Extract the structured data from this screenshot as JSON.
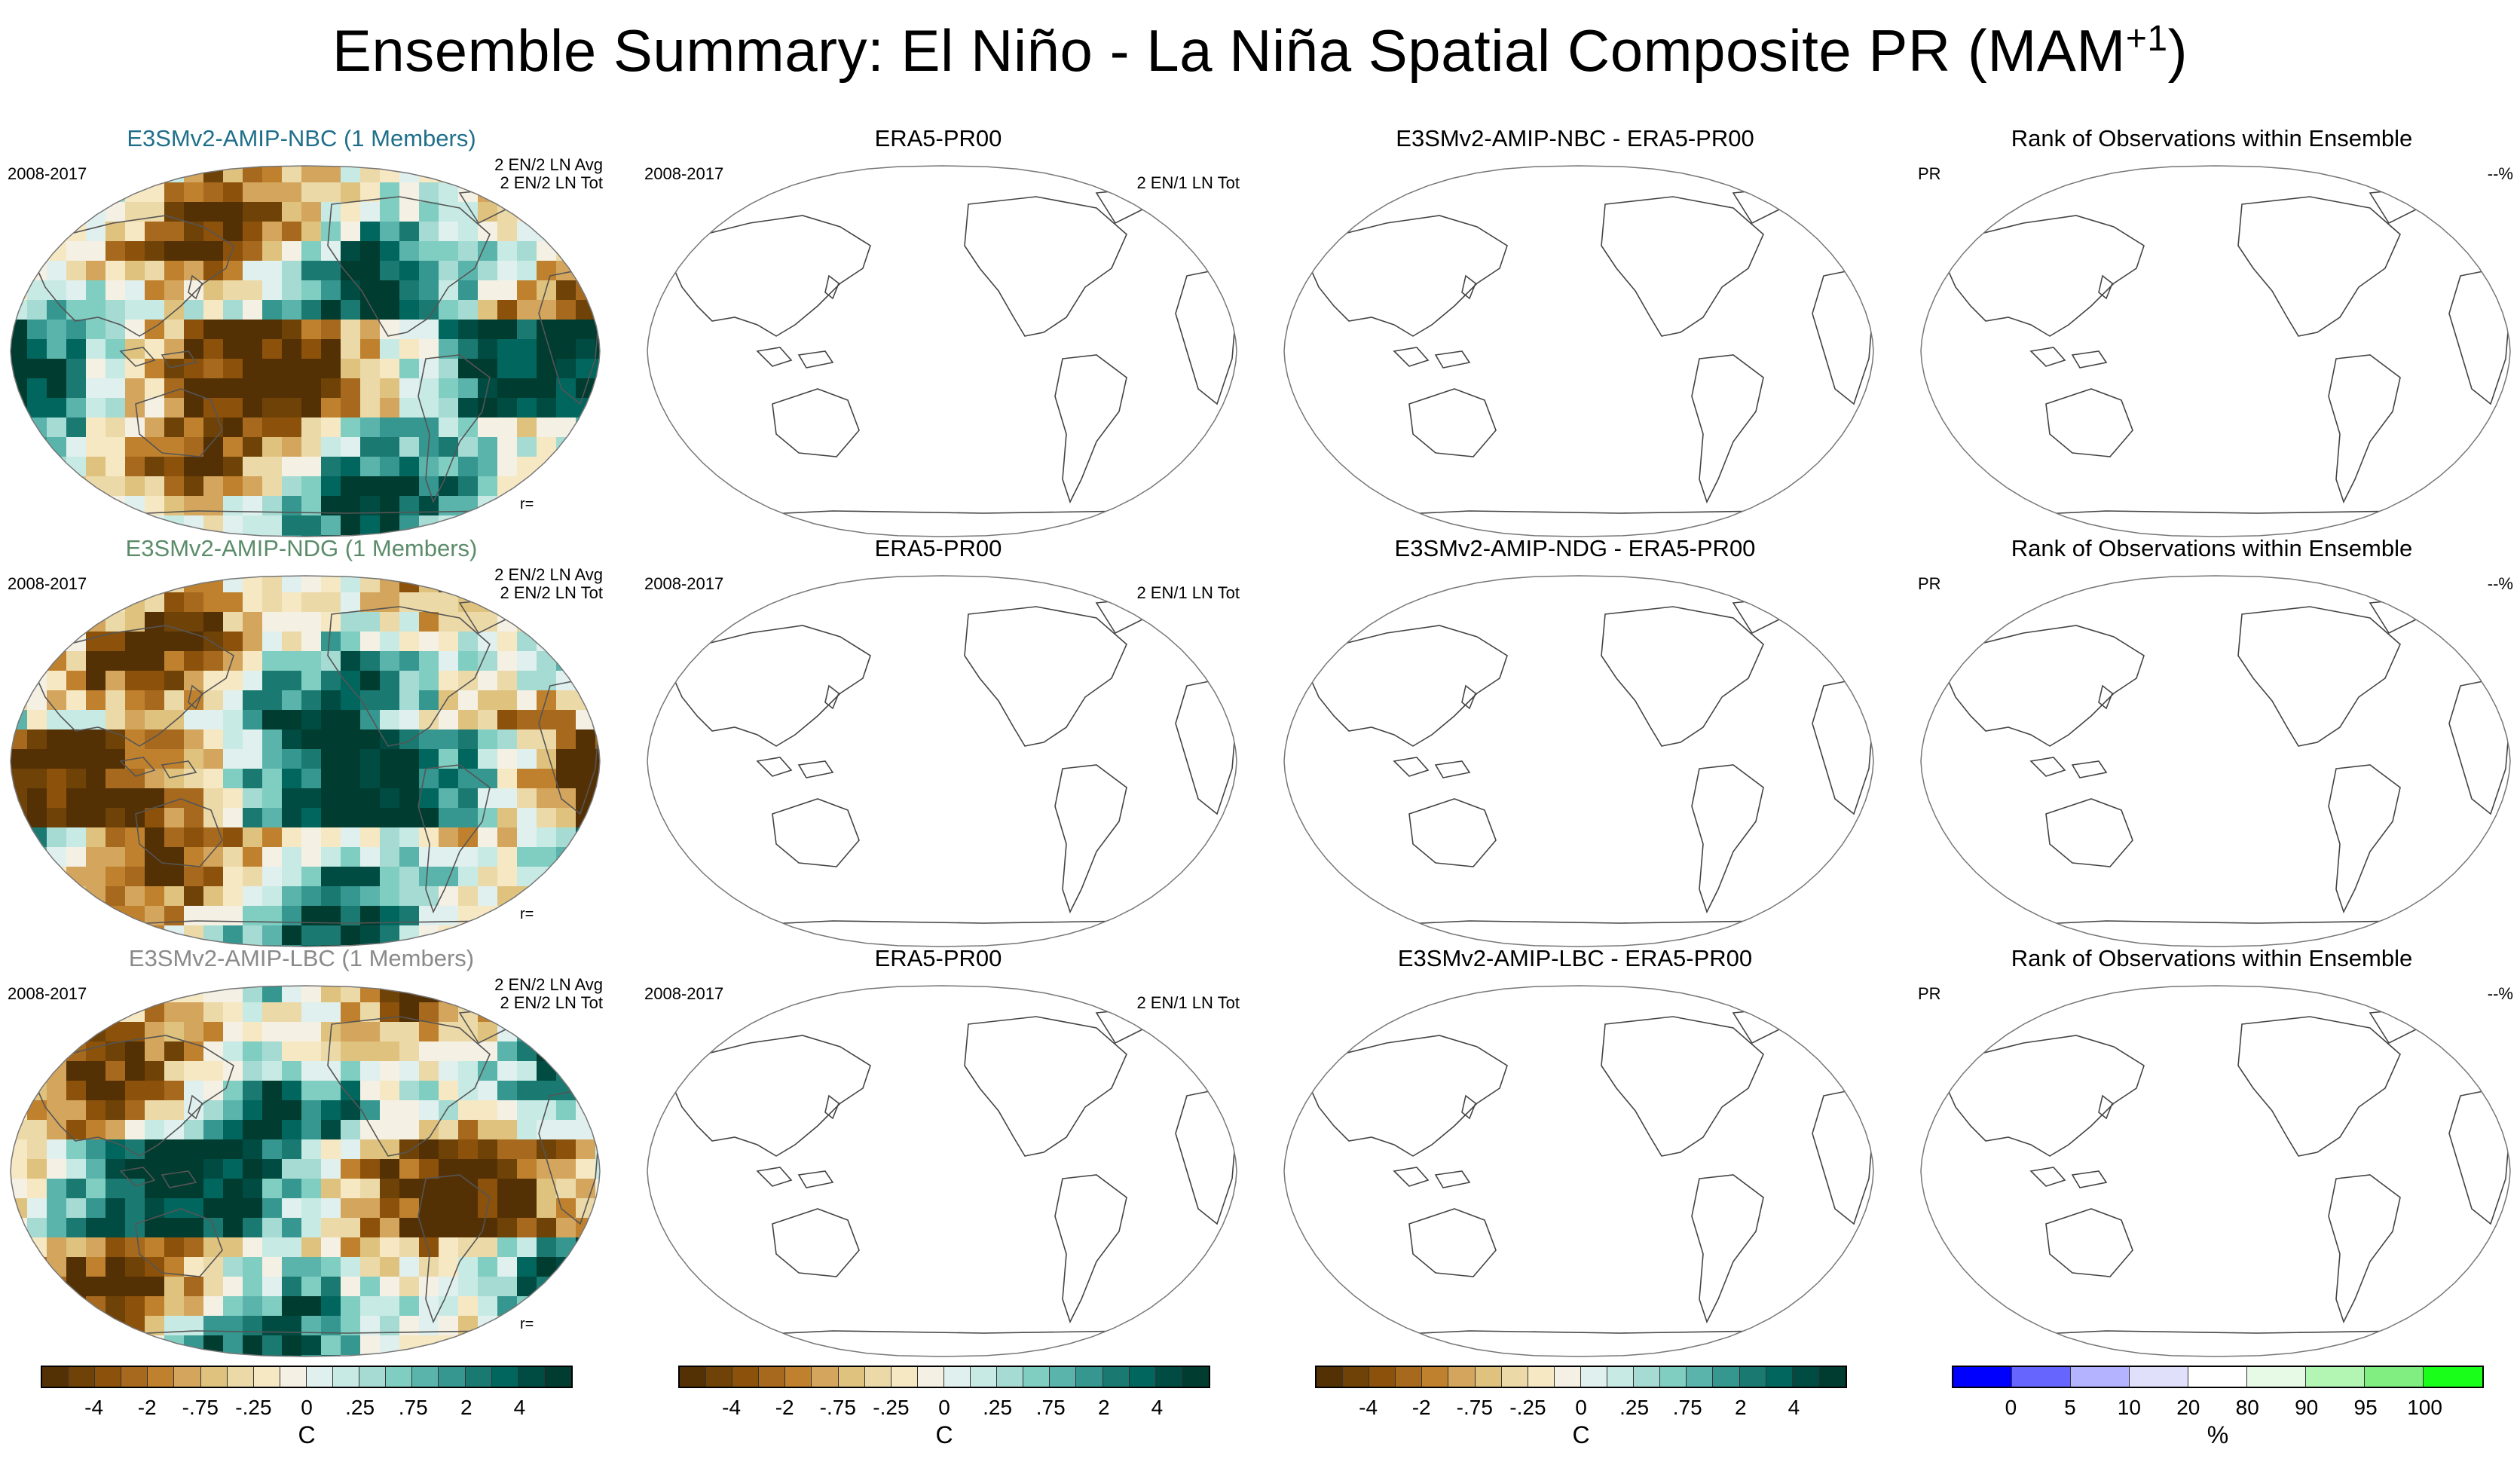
{
  "title": {
    "text": "Ensemble Summary: El Niño - La Niña Spatial Composite PR (MAM",
    "superscript": "+1",
    "close": ")"
  },
  "rows": [
    {
      "model": {
        "title": "E3SMv2-AMIP-NBC (1 Members)",
        "title_color": "#1f6f8b",
        "period": "2008-2017",
        "count_line1": "2 EN/2 LN Avg",
        "count_line2": "2 EN/2 LN Tot",
        "r_label": "r="
      },
      "obs": {
        "title": "ERA5-PR00",
        "period": "2008-2017",
        "count": "2 EN/1 LN Tot"
      },
      "diff": {
        "title": "E3SMv2-AMIP-NBC - ERA5-PR00"
      },
      "rank": {
        "title": "Rank of Observations within Ensemble",
        "var": "PR",
        "pct": "--%"
      }
    },
    {
      "model": {
        "title": "E3SMv2-AMIP-NDG (1 Members)",
        "title_color": "#5b8c6a",
        "period": "2008-2017",
        "count_line1": "2 EN/2 LN Avg",
        "count_line2": "2 EN/2 LN Tot",
        "r_label": "r="
      },
      "obs": {
        "title": "ERA5-PR00",
        "period": "2008-2017",
        "count": "2 EN/1 LN Tot"
      },
      "diff": {
        "title": "E3SMv2-AMIP-NDG - ERA5-PR00"
      },
      "rank": {
        "title": "Rank of Observations within Ensemble",
        "var": "PR",
        "pct": "--%"
      }
    },
    {
      "model": {
        "title": "E3SMv2-AMIP-LBC (1 Members)",
        "title_color": "#8a8a8a",
        "period": "2008-2017",
        "count_line1": "2 EN/2 LN Avg",
        "count_line2": "2 EN/2 LN Tot",
        "r_label": "r="
      },
      "obs": {
        "title": "ERA5-PR00",
        "period": "2008-2017",
        "count": "2 EN/1 LN Tot"
      },
      "diff": {
        "title": "E3SMv2-AMIP-LBC - ERA5-PR00"
      },
      "rank": {
        "title": "Rank of Observations within Ensemble",
        "var": "PR",
        "pct": "--%"
      }
    }
  ],
  "chart_data": {
    "type": "heatmap",
    "projection": "Robinson (Pacific-centered)",
    "variable": "PR",
    "season": "MAM+1",
    "panels_with_fields": [
      "E3SMv2-AMIP-NBC",
      "E3SMv2-AMIP-NDG",
      "E3SMv2-AMIP-LBC"
    ],
    "panels_empty": [
      "ERA5-PR00",
      "model - ERA5-PR00",
      "Rank of Observations within Ensemble"
    ],
    "colorbars": [
      {
        "name": "composite",
        "unit": "C",
        "tick_labels": [
          "-4",
          "-2",
          "-.75",
          "-.25",
          "0",
          ".25",
          ".75",
          "2",
          "4"
        ],
        "colors": [
          "#543005",
          "#6f4208",
          "#8c510a",
          "#a6691d",
          "#bf812d",
          "#d4a55c",
          "#dfc27d",
          "#ecd9a8",
          "#f6e8c3",
          "#f5f0e4",
          "#e0f0ee",
          "#c7eae5",
          "#a5dbd2",
          "#80cdc1",
          "#5ab4ac",
          "#35978f",
          "#1a7a72",
          "#01665e",
          "#004c42",
          "#003c30"
        ]
      },
      {
        "name": "composite",
        "unit": "C",
        "tick_labels": [
          "-4",
          "-2",
          "-.75",
          "-.25",
          "0",
          ".25",
          ".75",
          "2",
          "4"
        ],
        "colors": [
          "#543005",
          "#6f4208",
          "#8c510a",
          "#a6691d",
          "#bf812d",
          "#d4a55c",
          "#dfc27d",
          "#ecd9a8",
          "#f6e8c3",
          "#f5f0e4",
          "#e0f0ee",
          "#c7eae5",
          "#a5dbd2",
          "#80cdc1",
          "#5ab4ac",
          "#35978f",
          "#1a7a72",
          "#01665e",
          "#004c42",
          "#003c30"
        ]
      },
      {
        "name": "difference",
        "unit": "C",
        "tick_labels": [
          "-4",
          "-2",
          "-.75",
          "-.25",
          "0",
          ".25",
          ".75",
          "2",
          "4"
        ],
        "colors": [
          "#543005",
          "#6f4208",
          "#8c510a",
          "#a6691d",
          "#bf812d",
          "#d4a55c",
          "#dfc27d",
          "#ecd9a8",
          "#f6e8c3",
          "#f5f0e4",
          "#e0f0ee",
          "#c7eae5",
          "#a5dbd2",
          "#80cdc1",
          "#5ab4ac",
          "#35978f",
          "#1a7a72",
          "#01665e",
          "#004c42",
          "#003c30"
        ]
      },
      {
        "name": "rank",
        "unit": "%",
        "tick_labels": [
          "0",
          "5",
          "10",
          "20",
          "80",
          "90",
          "95",
          "100"
        ],
        "colors": [
          "#0000ff",
          "#6666ff",
          "#b3b3ff",
          "#e0e0fa",
          "#ffffff",
          "#e6fae6",
          "#b3f5b3",
          "#80ee80",
          "#1aff1a"
        ]
      }
    ]
  }
}
